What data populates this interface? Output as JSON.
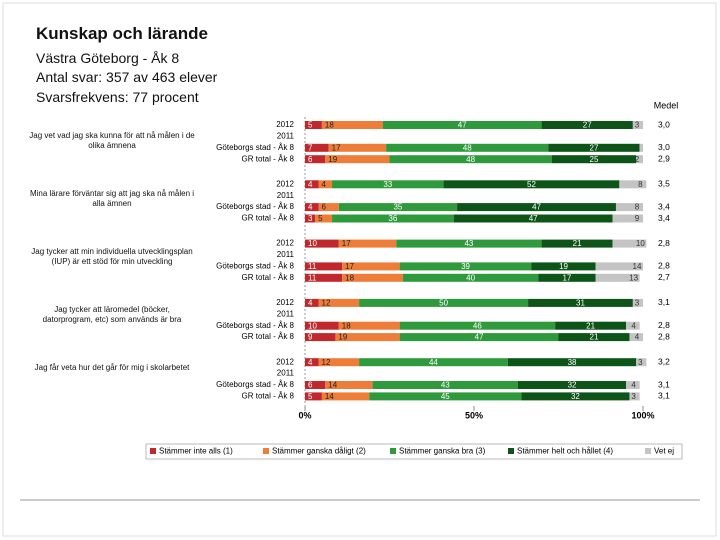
{
  "chart_data": {
    "type": "stacked_bar",
    "title": "Kunskap och lärande",
    "subtitle": [
      "Västra Göteborg - Åk 8",
      "Antal svar: 357 av 463 elever",
      "Svarsfrekvens: 77 procent"
    ],
    "mean_header": "Medel",
    "questions": [
      "Jag vet vad jag ska kunna för att nå målen i de olika ämnena",
      "Mina lärare förväntar sig att jag ska nå målen i alla ämnen",
      "Jag tycker att min individuella utvecklingsplan (IUP) är ett stöd för min utveckling",
      "Jag tycker att läromedel (böcker, datorprogram, etc) som används är bra",
      "Jag får veta hur det går för mig i skolarbetet"
    ],
    "categories": [
      "2012",
      "2011",
      "Göteborgs stad - Åk 8",
      "GR total - Åk 8",
      "2012",
      "2011",
      "Göteborgs stad - Åk 8",
      "GR total - Åk 8",
      "2012",
      "2011",
      "Göteborgs stad - Åk 8",
      "GR total - Åk 8",
      "2012",
      "2011",
      "Göteborgs stad - Åk 8",
      "GR total - Åk 8",
      "2012",
      "2011",
      "Göteborgs stad - Åk 8",
      "GR total - Åk 8"
    ],
    "series": [
      {
        "name": "Stämmer inte alls (1)",
        "color": "#c0282d",
        "values": [
          5,
          null,
          7,
          6,
          4,
          null,
          4,
          3,
          10,
          null,
          11,
          11,
          4,
          null,
          10,
          9,
          4,
          null,
          6,
          5
        ]
      },
      {
        "name": "Stämmer ganska dåligt (2)",
        "color": "#ef7d3a",
        "values": [
          18,
          null,
          17,
          19,
          4,
          null,
          6,
          5,
          17,
          null,
          17,
          18,
          12,
          null,
          18,
          19,
          12,
          null,
          14,
          14
        ]
      },
      {
        "name": "Stämmer ganska bra (3)",
        "color": "#2f9a3b",
        "values": [
          47,
          null,
          48,
          48,
          33,
          null,
          35,
          36,
          43,
          null,
          39,
          40,
          50,
          null,
          46,
          47,
          44,
          null,
          43,
          45
        ]
      },
      {
        "name": "Stämmer helt och hållet (4)",
        "color": "#0d5418",
        "values": [
          27,
          null,
          27,
          25,
          52,
          null,
          47,
          47,
          21,
          null,
          19,
          17,
          31,
          null,
          21,
          21,
          38,
          null,
          32,
          32
        ]
      },
      {
        "name": "Vet ej",
        "color": "#c4c4c4",
        "values": [
          3,
          null,
          1,
          2,
          8,
          null,
          8,
          9,
          10,
          null,
          14,
          13,
          3,
          null,
          4,
          4,
          3,
          null,
          4,
          3
        ]
      }
    ],
    "means": [
      "3,0",
      null,
      "3,0",
      "2,9",
      "3,5",
      null,
      "3,4",
      "3,4",
      "2,8",
      null,
      "2,8",
      "2,7",
      "3,1",
      null,
      "2,8",
      "2,8",
      "3,2",
      null,
      "3,1",
      "3,1"
    ],
    "xlim": [
      0,
      100
    ],
    "xticks": [
      {
        "value": 0,
        "label": "0%"
      },
      {
        "value": 50,
        "label": "50%"
      },
      {
        "value": 100,
        "label": "100%"
      }
    ]
  }
}
